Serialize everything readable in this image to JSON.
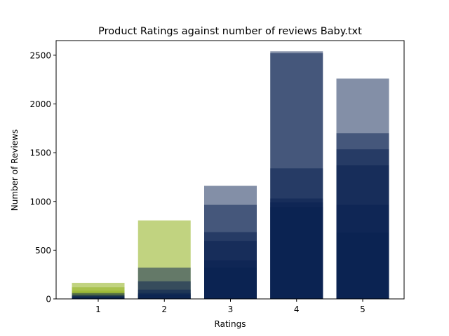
{
  "chart_data": {
    "type": "bar",
    "title": "Product Ratings against number of reviews Baby.txt",
    "xlabel": "Ratings",
    "ylabel": "Number of Reviews",
    "categories": [
      "1",
      "2",
      "3",
      "4",
      "5"
    ],
    "ylim": [
      0,
      2650
    ],
    "yticks": [
      0,
      500,
      1000,
      1500,
      2000,
      2500
    ],
    "grid": false,
    "legend": "none",
    "note": "Semi-transparent bars overlaid per rating; each layer drawn from 0 to its value.",
    "layers": [
      {
        "color": "#98b52c",
        "opacity": 0.6,
        "values": [
          165,
          805,
          0,
          0,
          0
        ]
      },
      {
        "color": "#98b52c",
        "opacity": 0.6,
        "values": [
          120,
          0,
          0,
          0,
          0
        ]
      },
      {
        "color": "#98b52c",
        "opacity": 0.6,
        "values": [
          85,
          0,
          0,
          0,
          0
        ]
      },
      {
        "color": "#082050",
        "opacity": 0.5,
        "values": [
          0,
          0,
          1160,
          2540,
          2260
        ]
      },
      {
        "color": "#082050",
        "opacity": 0.5,
        "values": [
          60,
          320,
          965,
          2520,
          1700
        ]
      },
      {
        "color": "#082050",
        "opacity": 0.5,
        "values": [
          40,
          180,
          685,
          1340,
          1535
        ]
      },
      {
        "color": "#082050",
        "opacity": 0.5,
        "values": [
          30,
          95,
          595,
          1030,
          1370
        ]
      },
      {
        "color": "#082050",
        "opacity": 0.5,
        "values": [
          22,
          60,
          395,
          990,
          965
        ]
      },
      {
        "color": "#082050",
        "opacity": 0.5,
        "values": [
          15,
          45,
          320,
          940,
          680
        ]
      }
    ]
  }
}
